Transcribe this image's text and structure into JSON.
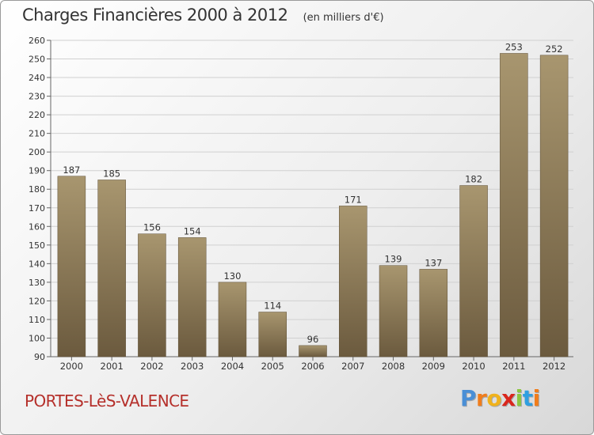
{
  "header": {
    "title": "Charges Financières 2000 à 2012",
    "subtitle": "(en milliers d'€)"
  },
  "footer": {
    "city": "PORTES-LèS-VALENCE",
    "logo_letters": [
      "P",
      "r",
      "o",
      "x",
      "i",
      "t",
      "i"
    ],
    "logo_colors": [
      "#4a8fd6",
      "#f07d1c",
      "#f0b21c",
      "#d9261c",
      "#8cc63f",
      "#2f9fe0",
      "#f07d1c"
    ]
  },
  "chart_data": {
    "type": "bar",
    "categories": [
      "2000",
      "2001",
      "2002",
      "2003",
      "2004",
      "2005",
      "2006",
      "2007",
      "2008",
      "2009",
      "2010",
      "2011",
      "2012"
    ],
    "values": [
      187,
      185,
      156,
      154,
      130,
      114,
      96,
      171,
      139,
      137,
      182,
      253,
      252
    ],
    "title": "Charges Financières 2000 à 2012",
    "subtitle": "(en milliers d'€)",
    "xlabel": "",
    "ylabel": "",
    "ylim": [
      90,
      260
    ],
    "yticks": [
      90,
      100,
      110,
      120,
      130,
      140,
      150,
      160,
      170,
      180,
      190,
      200,
      210,
      220,
      230,
      240,
      250,
      260
    ],
    "grid": true,
    "legend": "none",
    "bar_color": "#8a7758"
  }
}
